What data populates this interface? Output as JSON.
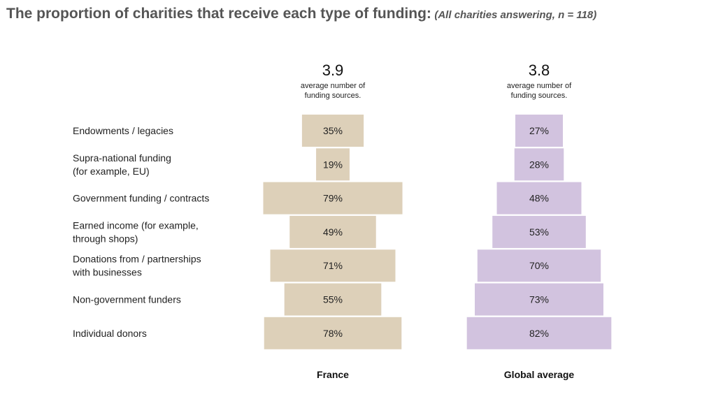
{
  "title": {
    "main": "The proportion of charities that receive each type of funding:",
    "sub": "(All charities answering, n = 118)"
  },
  "chart_data": {
    "type": "bar",
    "title": "The proportion of charities that receive each type of funding:",
    "subtitle": "(All charities answering, n = 118)",
    "categories": [
      [
        "Endowments / legacies"
      ],
      [
        "Supra-national funding",
        "(for example, EU)"
      ],
      [
        "Government funding / contracts"
      ],
      [
        "Earned income (for example,",
        "through shops)"
      ],
      [
        "Donations from / partnerships",
        "with businesses"
      ],
      [
        "Non-government funders"
      ],
      [
        "Individual donors"
      ]
    ],
    "series": [
      {
        "name": "France",
        "average": "3.9",
        "average_caption": [
          "average number of",
          "funding sources."
        ],
        "color": "#ddd0b9",
        "values": [
          35,
          19,
          79,
          49,
          71,
          55,
          78
        ],
        "labels": [
          "35%",
          "19%",
          "79%",
          "49%",
          "71%",
          "55%",
          "78%"
        ]
      },
      {
        "name": "Global average",
        "average": "3.8",
        "average_caption": [
          "average number of",
          "funding sources."
        ],
        "color": "#d2c3df",
        "values": [
          27,
          28,
          48,
          53,
          70,
          73,
          82
        ],
        "labels": [
          "27%",
          "28%",
          "48%",
          "53%",
          "70%",
          "73%",
          "82%"
        ]
      }
    ],
    "value_unit": "%",
    "legend": "none",
    "grid": false
  }
}
